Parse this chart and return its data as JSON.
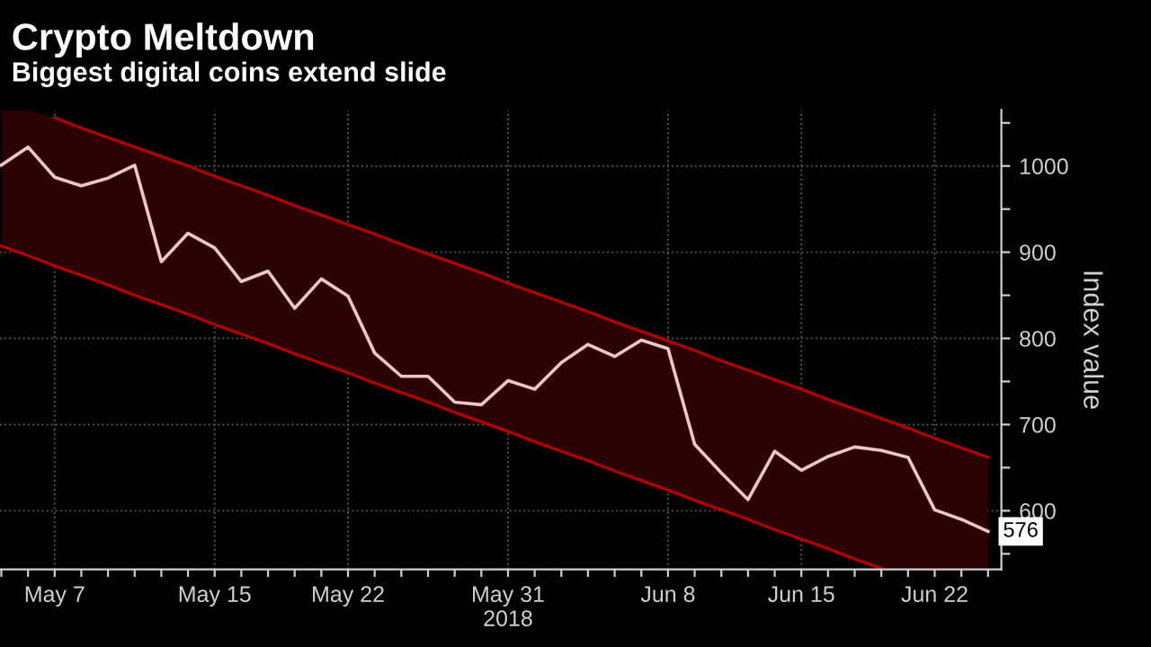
{
  "chart_data": {
    "type": "line",
    "title": "Crypto Meltdown",
    "subtitle": "Biggest digital coins extend slide",
    "ylabel": "Index value",
    "categories": [
      null,
      null,
      "May 7",
      null,
      null,
      null,
      null,
      null,
      "May 15",
      null,
      null,
      null,
      null,
      "May 22",
      null,
      null,
      null,
      null,
      null,
      "May 31\n2018",
      null,
      null,
      null,
      null,
      null,
      "Jun 8",
      null,
      null,
      null,
      null,
      "Jun 15",
      null,
      null,
      null,
      null,
      "Jun 22",
      null,
      null
    ],
    "series": [
      {
        "color": "#f2c4c4",
        "values": [
          1001,
          1022,
          987,
          977,
          986,
          1001,
          889,
          922,
          905,
          866,
          878,
          835,
          869,
          849,
          783,
          756,
          756,
          726,
          723,
          751,
          741,
          772,
          793,
          779,
          798,
          788,
          677,
          644,
          613,
          669,
          647,
          663,
          674,
          670,
          662,
          601,
          590,
          576
        ],
        "upper": [
          1065,
          1065,
          1056,
          1044,
          1033,
          1022,
          1011,
          1000,
          988,
          977,
          966,
          954,
          943,
          932,
          921,
          909,
          898,
          887,
          876,
          864,
          853,
          842,
          831,
          819,
          808,
          797,
          786,
          774,
          763,
          752,
          741,
          729,
          718,
          707,
          696,
          684,
          673,
          662
        ],
        "lower": [
          907,
          896,
          884,
          873,
          862,
          850,
          839,
          828,
          816,
          805,
          794,
          782,
          771,
          760,
          748,
          737,
          726,
          714,
          703,
          692,
          680,
          669,
          658,
          646,
          635,
          624,
          612,
          601,
          590,
          578,
          567,
          556,
          544,
          533,
          532,
          532,
          532,
          532
        ],
        "value_labels": [
          null,
          null,
          null,
          null,
          null,
          null,
          null,
          null,
          null,
          null,
          null,
          null,
          null,
          null,
          null,
          null,
          null,
          null,
          null,
          null,
          null,
          null,
          null,
          null,
          null,
          null,
          null,
          null,
          null,
          null,
          null,
          null,
          null,
          null,
          null,
          null,
          null,
          "576"
        ]
      },
      {
        "color": "#b00000",
        "values": [
          null,
          null,
          1056,
          1044,
          1033,
          1022,
          1011,
          1000,
          988,
          977,
          966,
          954,
          943,
          932,
          921,
          909,
          898,
          887,
          876,
          864,
          853,
          842,
          831,
          819,
          808,
          797,
          786,
          774,
          763,
          752,
          741,
          729,
          718,
          707,
          696,
          684,
          673,
          662
        ]
      },
      {
        "color": "#b00000",
        "values": [
          907,
          896,
          884,
          873,
          862,
          850,
          839,
          828,
          816,
          805,
          794,
          782,
          771,
          760,
          748,
          737,
          726,
          714,
          703,
          692,
          680,
          669,
          658,
          646,
          635,
          624,
          612,
          601,
          590,
          578,
          567,
          556,
          544,
          533,
          null,
          null,
          null,
          null
        ]
      }
    ],
    "ylim": [
      532,
      1065
    ],
    "yticks": [
      {
        "value": 550,
        "label": null
      },
      600,
      {
        "value": 650,
        "label": null
      },
      700,
      {
        "value": 750,
        "label": null
      },
      800,
      {
        "value": 850,
        "label": null
      },
      900,
      {
        "value": 950,
        "label": null
      },
      1000,
      {
        "value": 1050,
        "label": null
      }
    ],
    "grid": true,
    "marker": "none",
    "line_style": "solid"
  }
}
